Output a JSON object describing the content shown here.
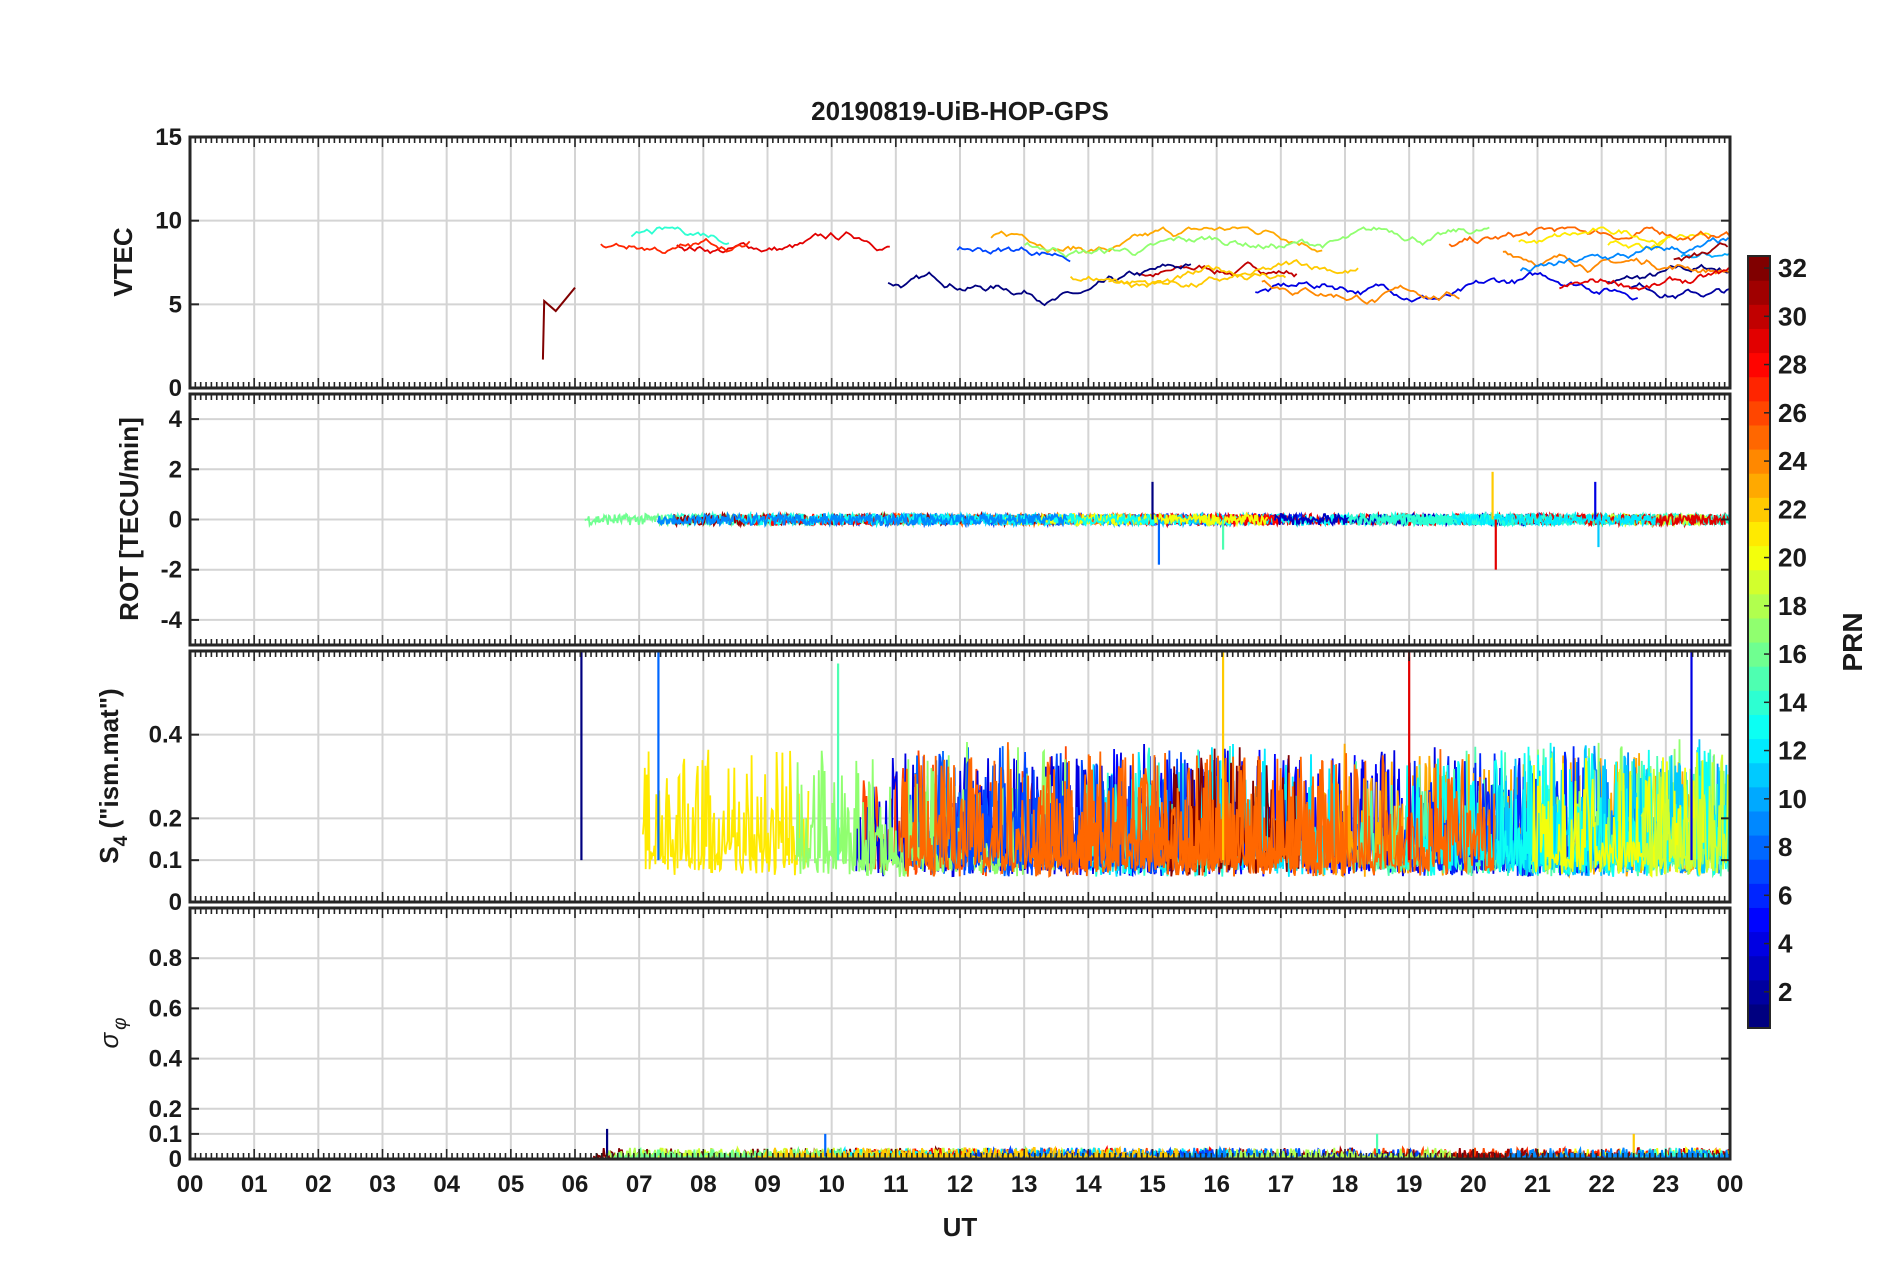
{
  "chart_data": {
    "type": "line",
    "title": "20190819-UiB-HOP-GPS",
    "xlabel": "UT",
    "x_ticks": [
      "00",
      "01",
      "02",
      "03",
      "04",
      "05",
      "06",
      "07",
      "08",
      "09",
      "10",
      "11",
      "12",
      "13",
      "14",
      "15",
      "16",
      "17",
      "18",
      "19",
      "20",
      "21",
      "22",
      "23",
      "00"
    ],
    "x_range_hours": [
      0,
      24
    ],
    "data_start_hour": 5.5,
    "colorbar": {
      "label": "PRN",
      "range": [
        1,
        32
      ],
      "ticks": [
        "2",
        "4",
        "6",
        "8",
        "10",
        "12",
        "14",
        "16",
        "18",
        "20",
        "22",
        "24",
        "26",
        "28",
        "30",
        "32"
      ],
      "colormap": "jet"
    },
    "panels": [
      {
        "id": "vtec",
        "ylabel": "VTEC",
        "ylim": [
          0,
          15
        ],
        "yticks": [
          "0",
          "5",
          "10",
          "15"
        ],
        "typical_range": [
          4,
          9
        ],
        "notes": "PRN tracks mostly 5-9 TECU, short spike near 2 at 05:30"
      },
      {
        "id": "rot",
        "ylabel": "ROT [TECU/min]",
        "ylim": [
          -5,
          5
        ],
        "yticks": [
          "-4",
          "-2",
          "0",
          "2",
          "4"
        ],
        "typical_range": [
          -0.3,
          0.3
        ],
        "spikes": [
          [
            15.0,
            1.5
          ],
          [
            15.1,
            -1.8
          ],
          [
            16.1,
            -1.2
          ],
          [
            20.3,
            1.9
          ],
          [
            20.35,
            -2.0
          ],
          [
            21.9,
            1.5
          ],
          [
            21.95,
            -1.1
          ]
        ]
      },
      {
        "id": "s4",
        "ylabel": "S4 (\"ism.mat\")",
        "ylabel_main": "S",
        "ylabel_sub": "4",
        "ylabel_rest": " (\"ism.mat\")",
        "ylim": [
          0,
          0.6
        ],
        "yticks": [
          "0",
          "0.1",
          "0.2",
          "0.4"
        ],
        "typical_range": [
          0.05,
          0.3
        ],
        "peaks": [
          [
            6.1,
            0.6
          ],
          [
            7.3,
            0.6
          ],
          [
            10.1,
            0.57
          ],
          [
            16.1,
            0.6
          ],
          [
            19.0,
            0.6
          ],
          [
            23.4,
            0.6
          ]
        ]
      },
      {
        "id": "sigma_phi",
        "ylabel": "σφ",
        "ylabel_main": "σ",
        "ylabel_sub": "φ",
        "ylim": [
          0,
          1
        ],
        "yticks": [
          "0",
          "0.1",
          "0.2",
          "0.4",
          "0.6",
          "0.8"
        ],
        "typical_range": [
          0,
          0.05
        ],
        "peaks": [
          [
            6.5,
            0.12
          ],
          [
            9.9,
            0.1
          ],
          [
            18.5,
            0.1
          ],
          [
            22.5,
            0.1
          ]
        ]
      }
    ]
  }
}
